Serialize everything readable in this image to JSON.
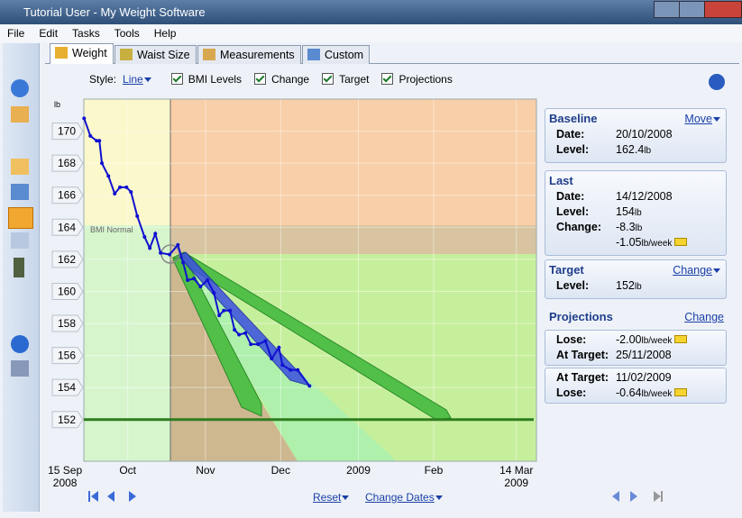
{
  "window": {
    "title": "Tutorial User - My Weight Software"
  },
  "menu": [
    "File",
    "Edit",
    "Tasks",
    "Tools",
    "Help"
  ],
  "tabs": [
    "Weight",
    "Waist Size",
    "Measurements",
    "Custom"
  ],
  "options": {
    "style_label": "Style:",
    "style_value": "Line",
    "checkboxes": [
      "BMI Levels",
      "Change",
      "Target",
      "Projections"
    ]
  },
  "chart_data": {
    "type": "line",
    "y_label": "lb",
    "annotation": "BMI Normal",
    "color": "#1010d0",
    "x": [
      7.6,
      10.1,
      12.6,
      13.7,
      14.7,
      17.3,
      19.8,
      21.9,
      24.5,
      26.3,
      28.8,
      31.7,
      33.8,
      36.0,
      38.1,
      41.7,
      45.0,
      47.1,
      48.9,
      51.4,
      54.0,
      56.8,
      59.4,
      61.5,
      63.3,
      65.8,
      67.6,
      69.4,
      71.9,
      74.1,
      77.0,
      79.9,
      82.4,
      85.3,
      86.7,
      89.9,
      92.8,
      97.5
    ],
    "values": [
      170.8,
      169.7,
      169.4,
      169.4,
      168.0,
      167.2,
      166.1,
      166.5,
      166.5,
      166.2,
      164.7,
      163.4,
      162.7,
      163.6,
      162.4,
      162.3,
      162.9,
      161.8,
      160.7,
      160.8,
      160.3,
      160.7,
      159.9,
      158.5,
      158.8,
      158.8,
      157.6,
      157.3,
      157.4,
      156.7,
      156.7,
      156.9,
      155.8,
      156.5,
      155.4,
      155.1,
      155.1,
      154.1
    ],
    "target_line": 152,
    "target_color": "#2e7d1e",
    "xlim": [
      7.5,
      188
    ],
    "xticks": [
      {
        "value": 0,
        "label": "15 Sep\n2008"
      },
      {
        "value": 25,
        "label": "Oct"
      },
      {
        "value": 56,
        "label": "Nov"
      },
      {
        "value": 86,
        "label": "Dec"
      },
      {
        "value": 117,
        "label": "2009"
      },
      {
        "value": 147,
        "label": "Feb"
      },
      {
        "value": 180,
        "label": "14 Mar\n2009"
      }
    ],
    "ylim": [
      149.4,
      172
    ],
    "yticks": [
      152,
      154,
      156,
      158,
      160,
      162,
      164,
      166,
      168,
      170
    ],
    "grid": true
  },
  "bottom": {
    "reset": "Reset",
    "change_dates": "Change Dates"
  },
  "panels": [
    {
      "title": "Baseline",
      "action": "Move",
      "rows": [
        {
          "label": "Date:",
          "value": "20/10/2008"
        },
        {
          "label": "Level:",
          "value": "162.4",
          "unit": "lb"
        }
      ]
    },
    {
      "title": "Last",
      "rows": [
        {
          "label": "Date:",
          "value": "14/12/2008"
        },
        {
          "label": "Level:",
          "value": "154",
          "unit": "lb"
        },
        {
          "label": "Change:",
          "value": "-8.3",
          "unit": "lb"
        },
        {
          "value": "-1.05",
          "unit": "lb/week"
        }
      ]
    },
    {
      "title": "Target",
      "action": "Change",
      "rows": [
        {
          "label": "Level:",
          "value": "152",
          "unit": "lb"
        }
      ]
    }
  ],
  "projections": {
    "title": "Projections",
    "action": "Change",
    "boxes": [
      [
        {
          "label": "Lose:",
          "value": "-2.00",
          "unit": "lb/week"
        },
        {
          "label": "At Target:",
          "value": "25/11/2008"
        }
      ],
      [
        {
          "label": "At Target:",
          "value": "11/02/2009"
        },
        {
          "label": "Lose:",
          "value": "-0.64",
          "unit": "lb/week"
        }
      ]
    ]
  }
}
